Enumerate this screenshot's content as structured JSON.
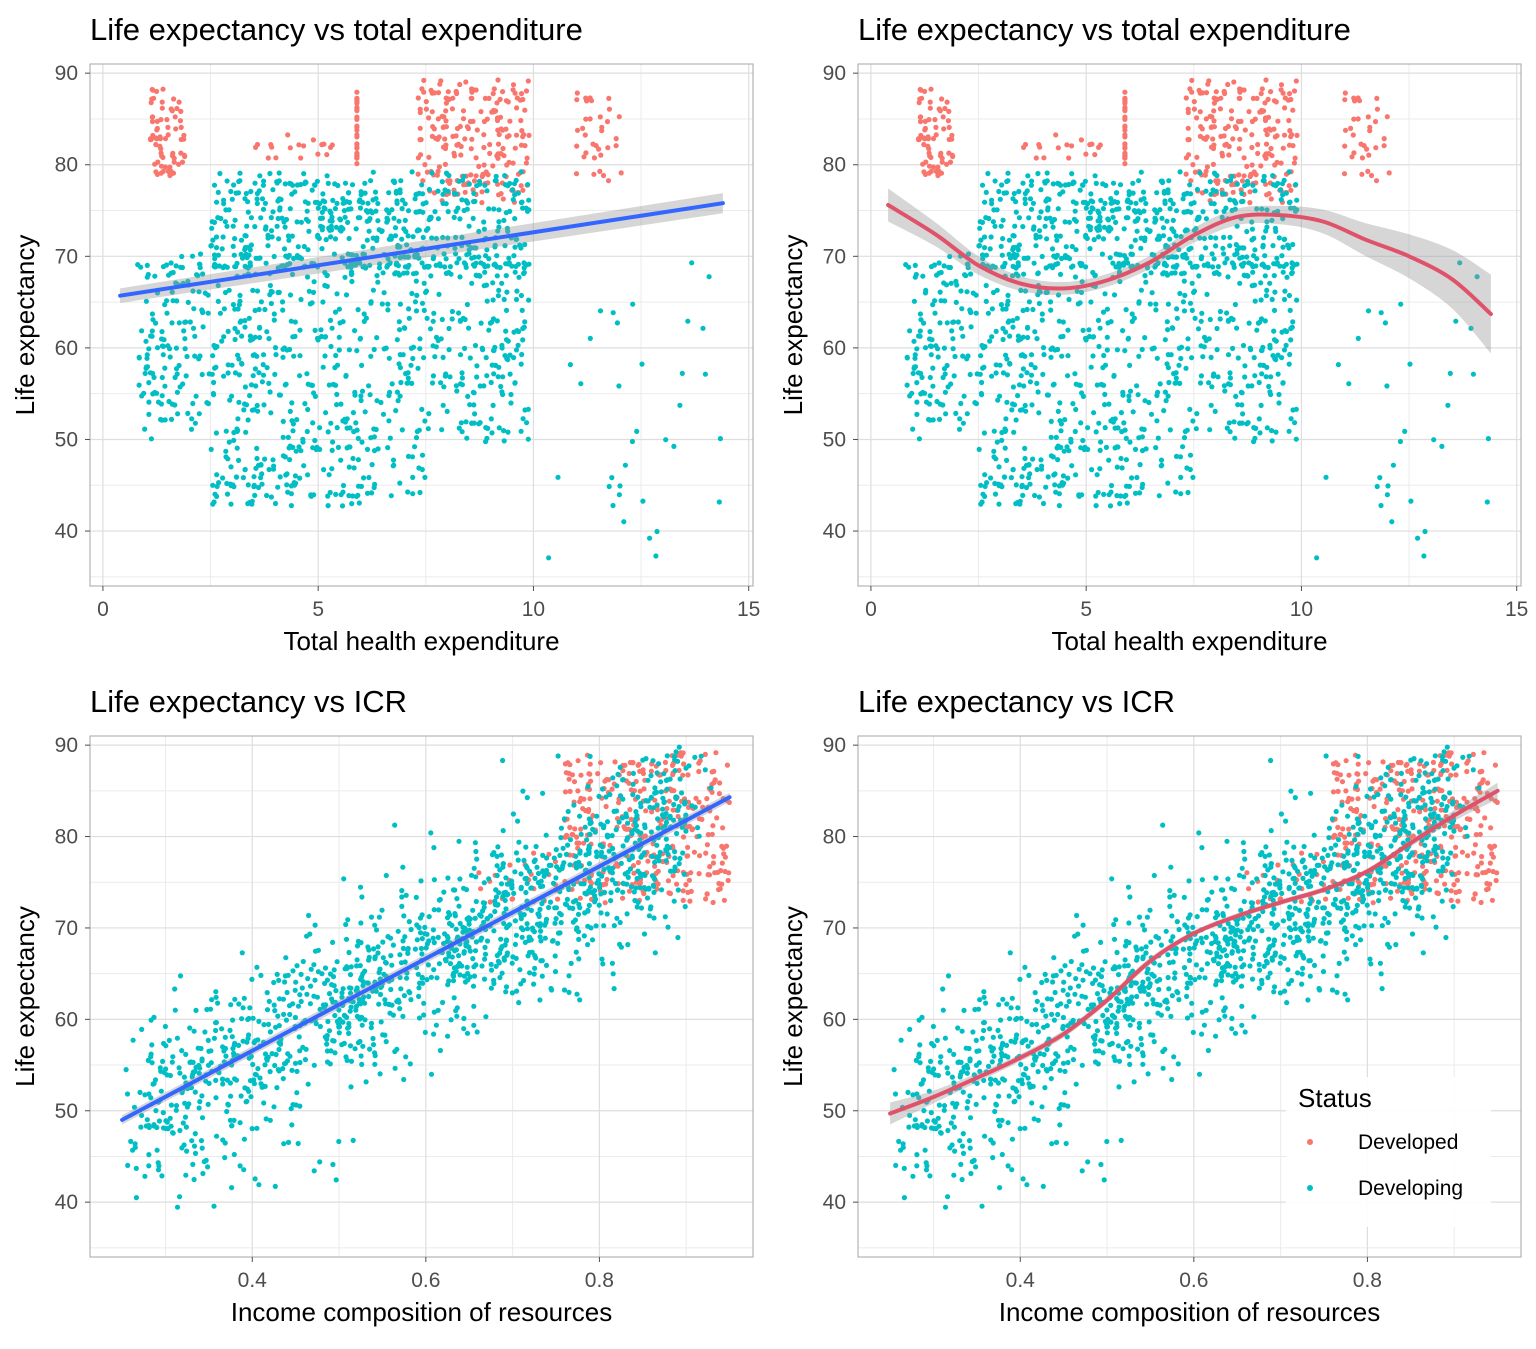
{
  "legend": {
    "title": "Status",
    "items": [
      {
        "label": "Developed",
        "color": "#F8766D"
      },
      {
        "label": "Developing",
        "color": "#00BFC4"
      }
    ]
  },
  "chart_data": [
    {
      "type": "scatter",
      "title": "Life expectancy vs total expenditure",
      "xlabel": "Total health expenditure",
      "ylabel": "Life expectancy",
      "xlim": [
        -0.3,
        15.1
      ],
      "ylim": [
        34.0,
        91.0
      ],
      "xticks": [
        0,
        5,
        10,
        15
      ],
      "yticks": [
        40,
        50,
        60,
        70,
        80,
        90
      ],
      "xtick_labels": [
        "0",
        "5",
        "10",
        "15"
      ],
      "ytick_labels": [
        "40",
        "50",
        "60",
        "70",
        "80",
        "90"
      ],
      "grid": true,
      "fit": {
        "method": "linear",
        "color": "#3366FF",
        "band": true,
        "x": [
          0.4,
          14.4
        ],
        "y": [
          65.7,
          75.8
        ],
        "se_lo": [
          64.9,
          74.7
        ],
        "se_hi": [
          66.5,
          76.9
        ]
      },
      "series": [
        {
          "name": "Developed",
          "color": "#F8766D",
          "cluster_groups": [
            {
              "x": [
                1.1,
                1.9
              ],
              "y": [
                78,
                88
              ],
              "n": 70
            },
            {
              "x": [
                3.5,
                5.5
              ],
              "y": [
                81,
                83
              ],
              "n": 18
            },
            {
              "x": [
                5.9,
                5.9
              ],
              "y": [
                80,
                88
              ],
              "n": 28
            },
            {
              "x": [
                7.3,
                9.9
              ],
              "y": [
                76,
                89
              ],
              "n": 210
            },
            {
              "x": [
                11.0,
                12.1
              ],
              "y": [
                78,
                89
              ],
              "n": 35
            }
          ]
        },
        {
          "name": "Developing",
          "color": "#00BFC4",
          "cluster_groups": [
            {
              "x": [
                2.5,
                9.9
              ],
              "y": [
                68,
                79
              ],
              "n": 520
            },
            {
              "x": [
                0.8,
                9.9
              ],
              "y": [
                50,
                70
              ],
              "n": 650
            },
            {
              "x": [
                2.5,
                7.5
              ],
              "y": [
                43,
                50
              ],
              "n": 150
            },
            {
              "x": [
                10.2,
                14.5
              ],
              "y": [
                36,
                70
              ],
              "n": 35
            }
          ]
        }
      ]
    },
    {
      "type": "scatter",
      "title": "Life expectancy vs total expenditure",
      "xlabel": "Total health expenditure",
      "ylabel": "Life expectancy",
      "xlim": [
        -0.3,
        15.1
      ],
      "ylim": [
        34.0,
        91.0
      ],
      "xticks": [
        0,
        5,
        10,
        15
      ],
      "yticks": [
        40,
        50,
        60,
        70,
        80,
        90
      ],
      "xtick_labels": [
        "0",
        "5",
        "10",
        "15"
      ],
      "ytick_labels": [
        "40",
        "50",
        "60",
        "70",
        "80",
        "90"
      ],
      "grid": true,
      "fit": {
        "method": "loess",
        "color": "#E0526A",
        "band": true,
        "x": [
          0.4,
          1.5,
          2.5,
          3.5,
          4.5,
          5.5,
          6.5,
          7.5,
          8.5,
          9.5,
          10.5,
          11.5,
          12.5,
          13.5,
          14.4
        ],
        "y": [
          75.6,
          72.4,
          69.0,
          67.0,
          66.5,
          67.4,
          69.4,
          72.3,
          74.3,
          74.5,
          73.8,
          71.8,
          70.0,
          67.5,
          63.7
        ],
        "band_width": [
          1.8,
          1.3,
          1.0,
          0.8,
          0.7,
          0.7,
          0.7,
          0.8,
          0.9,
          1.0,
          1.3,
          1.8,
          2.4,
          3.2,
          4.3
        ]
      },
      "series": [
        {
          "name": "Developed",
          "color": "#F8766D",
          "cluster_groups": [
            {
              "x": [
                1.1,
                1.9
              ],
              "y": [
                78,
                88
              ],
              "n": 70
            },
            {
              "x": [
                3.5,
                5.5
              ],
              "y": [
                81,
                83
              ],
              "n": 18
            },
            {
              "x": [
                5.9,
                5.9
              ],
              "y": [
                80,
                88
              ],
              "n": 28
            },
            {
              "x": [
                7.3,
                9.9
              ],
              "y": [
                76,
                89
              ],
              "n": 210
            },
            {
              "x": [
                11.0,
                12.1
              ],
              "y": [
                78,
                89
              ],
              "n": 35
            }
          ]
        },
        {
          "name": "Developing",
          "color": "#00BFC4",
          "cluster_groups": [
            {
              "x": [
                2.5,
                9.9
              ],
              "y": [
                68,
                79
              ],
              "n": 520
            },
            {
              "x": [
                0.8,
                9.9
              ],
              "y": [
                50,
                70
              ],
              "n": 650
            },
            {
              "x": [
                2.5,
                7.5
              ],
              "y": [
                43,
                50
              ],
              "n": 150
            },
            {
              "x": [
                10.2,
                14.5
              ],
              "y": [
                36,
                70
              ],
              "n": 35
            }
          ]
        }
      ]
    },
    {
      "type": "scatter",
      "title": "Life expectancy vs ICR",
      "xlabel": "Income composition of resources",
      "ylabel": "Life expectancy",
      "xlim": [
        0.213,
        0.977
      ],
      "ylim": [
        34.0,
        91.0
      ],
      "xticks": [
        0.4,
        0.6,
        0.8
      ],
      "yticks": [
        40,
        50,
        60,
        70,
        80,
        90
      ],
      "xtick_labels": [
        "0.4",
        "0.6",
        "0.8"
      ],
      "ytick_labels": [
        "40",
        "50",
        "60",
        "70",
        "80",
        "90"
      ],
      "grid": true,
      "fit": {
        "method": "linear",
        "color": "#3366FF",
        "band": true,
        "x": [
          0.25,
          0.95
        ],
        "y": [
          49.0,
          84.3
        ],
        "se_lo": [
          48.5,
          83.8
        ],
        "se_hi": [
          49.5,
          84.8
        ]
      },
      "series": [
        {
          "name": "Developed",
          "color": "#F8766D",
          "cluster_groups": [
            {
              "x": [
                0.76,
                0.95
              ],
              "y": [
                73,
                89
              ],
              "n": 330
            },
            {
              "x": [
                0.66,
                0.76
              ],
              "y": [
                72,
                78
              ],
              "n": 25
            }
          ]
        },
        {
          "name": "Developing",
          "color": "#00BFC4",
          "band": {
            "slope": 50,
            "intercept": 36.5,
            "spread": 9,
            "x": [
              0.25,
              0.9
            ]
          },
          "n": 1300,
          "extra_groups": [
            {
              "x": [
                0.28,
                0.5
              ],
              "y": [
                39,
                49
              ],
              "n": 25
            },
            {
              "x": [
                0.85,
                0.93
              ],
              "y": [
                80,
                89
              ],
              "n": 30
            }
          ]
        }
      ]
    },
    {
      "type": "scatter",
      "title": "Life expectancy vs ICR",
      "xlabel": "Income composition of resources",
      "ylabel": "Life expectancy",
      "xlim": [
        0.213,
        0.977
      ],
      "ylim": [
        34.0,
        91.0
      ],
      "xticks": [
        0.4,
        0.6,
        0.8
      ],
      "yticks": [
        40,
        50,
        60,
        70,
        80,
        90
      ],
      "xtick_labels": [
        "0.4",
        "0.6",
        "0.8"
      ],
      "ytick_labels": [
        "40",
        "50",
        "60",
        "70",
        "80",
        "90"
      ],
      "grid": true,
      "legend_position": "bottom-right",
      "fit": {
        "method": "loess",
        "color": "#E0526A",
        "band": true,
        "x": [
          0.25,
          0.3,
          0.35,
          0.4,
          0.45,
          0.5,
          0.55,
          0.6,
          0.65,
          0.7,
          0.75,
          0.8,
          0.85,
          0.9,
          0.95
        ],
        "y": [
          49.7,
          51.5,
          53.6,
          55.8,
          58.4,
          62.1,
          66.4,
          69.4,
          71.3,
          72.8,
          74.2,
          76.2,
          79.3,
          82.3,
          85.0
        ],
        "band_width": [
          1.2,
          0.7,
          0.5,
          0.4,
          0.4,
          0.4,
          0.4,
          0.3,
          0.3,
          0.3,
          0.3,
          0.3,
          0.4,
          0.6,
          0.9
        ]
      },
      "series": [
        {
          "name": "Developed",
          "color": "#F8766D",
          "cluster_groups": [
            {
              "x": [
                0.76,
                0.95
              ],
              "y": [
                73,
                89
              ],
              "n": 330
            },
            {
              "x": [
                0.66,
                0.76
              ],
              "y": [
                72,
                78
              ],
              "n": 25
            }
          ]
        },
        {
          "name": "Developing",
          "color": "#00BFC4",
          "band": {
            "slope": 50,
            "intercept": 36.5,
            "spread": 9,
            "x": [
              0.25,
              0.9
            ]
          },
          "n": 1300,
          "extra_groups": [
            {
              "x": [
                0.28,
                0.5
              ],
              "y": [
                39,
                49
              ],
              "n": 25
            },
            {
              "x": [
                0.85,
                0.93
              ],
              "y": [
                80,
                89
              ],
              "n": 30
            }
          ]
        }
      ]
    }
  ]
}
